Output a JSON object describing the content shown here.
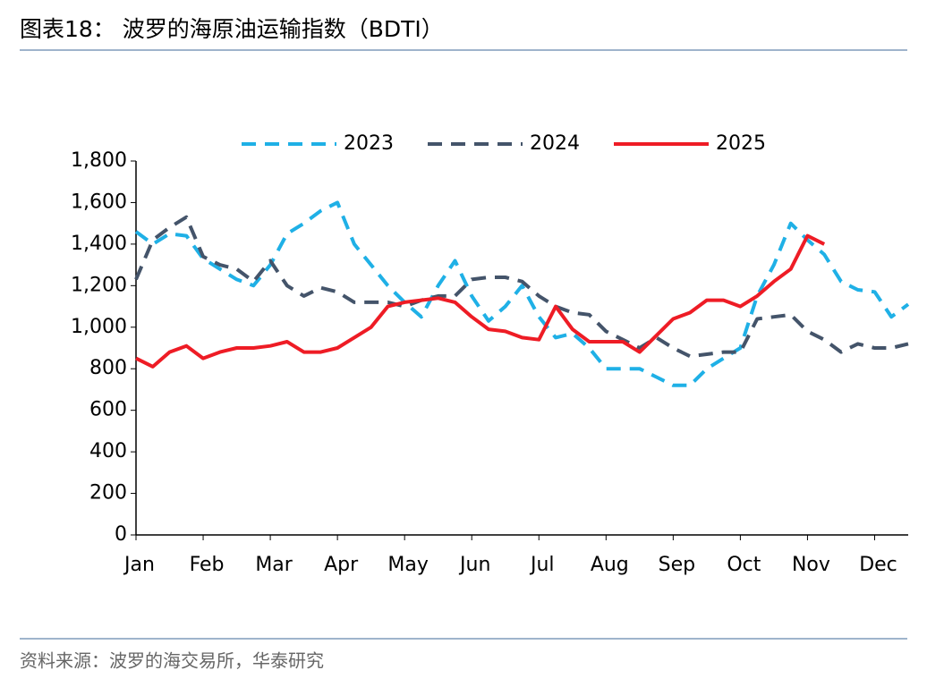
{
  "chart_data": {
    "type": "line",
    "title": "图表18：  波罗的海原油运输指数（BDTI）",
    "source": "资料来源：波罗的海交易所，华泰研究",
    "categories": [
      "Jan",
      null,
      null,
      null,
      "Feb",
      null,
      null,
      null,
      "Mar",
      null,
      null,
      null,
      "Apr",
      null,
      null,
      null,
      "May",
      null,
      null,
      null,
      "Jun",
      null,
      null,
      null,
      "Jul",
      null,
      null,
      null,
      "Aug",
      null,
      null,
      null,
      "Sep",
      null,
      null,
      null,
      "Oct",
      null,
      null,
      null,
      "Nov",
      null,
      null,
      null,
      "Dec",
      null,
      null
    ],
    "series": [
      {
        "name": "2023",
        "color": "#1fb0e6",
        "dash": true,
        "values": [
          1460,
          1400,
          1450,
          1440,
          1330,
          1280,
          1230,
          1200,
          1300,
          1450,
          1500,
          1560,
          1600,
          1400,
          1300,
          1200,
          1120,
          1050,
          1200,
          1320,
          1150,
          1030,
          1100,
          1200,
          1050,
          950,
          970,
          900,
          800,
          800,
          800,
          760,
          720,
          720,
          800,
          850,
          900,
          1150,
          1300,
          1500,
          1420,
          1350,
          1220,
          1180,
          1170,
          1050,
          1110
        ]
      },
      {
        "name": "2024",
        "color": "#44546a",
        "dash": true,
        "values": [
          1230,
          1420,
          1480,
          1530,
          1340,
          1300,
          1280,
          1220,
          1320,
          1200,
          1150,
          1190,
          1170,
          1120,
          1120,
          1120,
          1100,
          1130,
          1150,
          1150,
          1230,
          1240,
          1240,
          1220,
          1150,
          1100,
          1070,
          1060,
          980,
          940,
          900,
          950,
          900,
          860,
          870,
          880,
          880,
          1040,
          1050,
          1060,
          980,
          940,
          880,
          920,
          900,
          900,
          920
        ]
      },
      {
        "name": "2025",
        "color": "#ee1c25",
        "dash": false,
        "values": [
          850,
          810,
          880,
          910,
          850,
          880,
          900,
          900,
          910,
          930,
          880,
          880,
          900,
          950,
          1000,
          1100,
          1120,
          1130,
          1140,
          1120,
          1050,
          990,
          980,
          950,
          940,
          1100,
          990,
          930,
          930,
          930,
          880,
          960,
          1040,
          1070,
          1130,
          1130,
          1100,
          1150,
          1220,
          1280,
          1440,
          1400,
          null,
          null,
          null,
          null,
          null
        ]
      }
    ],
    "ylim": [
      0,
      1800
    ],
    "yticks": [
      0,
      200,
      400,
      600,
      800,
      {
        "value": 1000,
        "label": "1,000"
      },
      {
        "value": 1200,
        "label": "1,200"
      },
      {
        "value": 1400,
        "label": "1,400"
      },
      {
        "value": 1600,
        "label": "1,600"
      },
      {
        "value": 1800,
        "label": "1,800"
      }
    ],
    "legend": "top"
  }
}
